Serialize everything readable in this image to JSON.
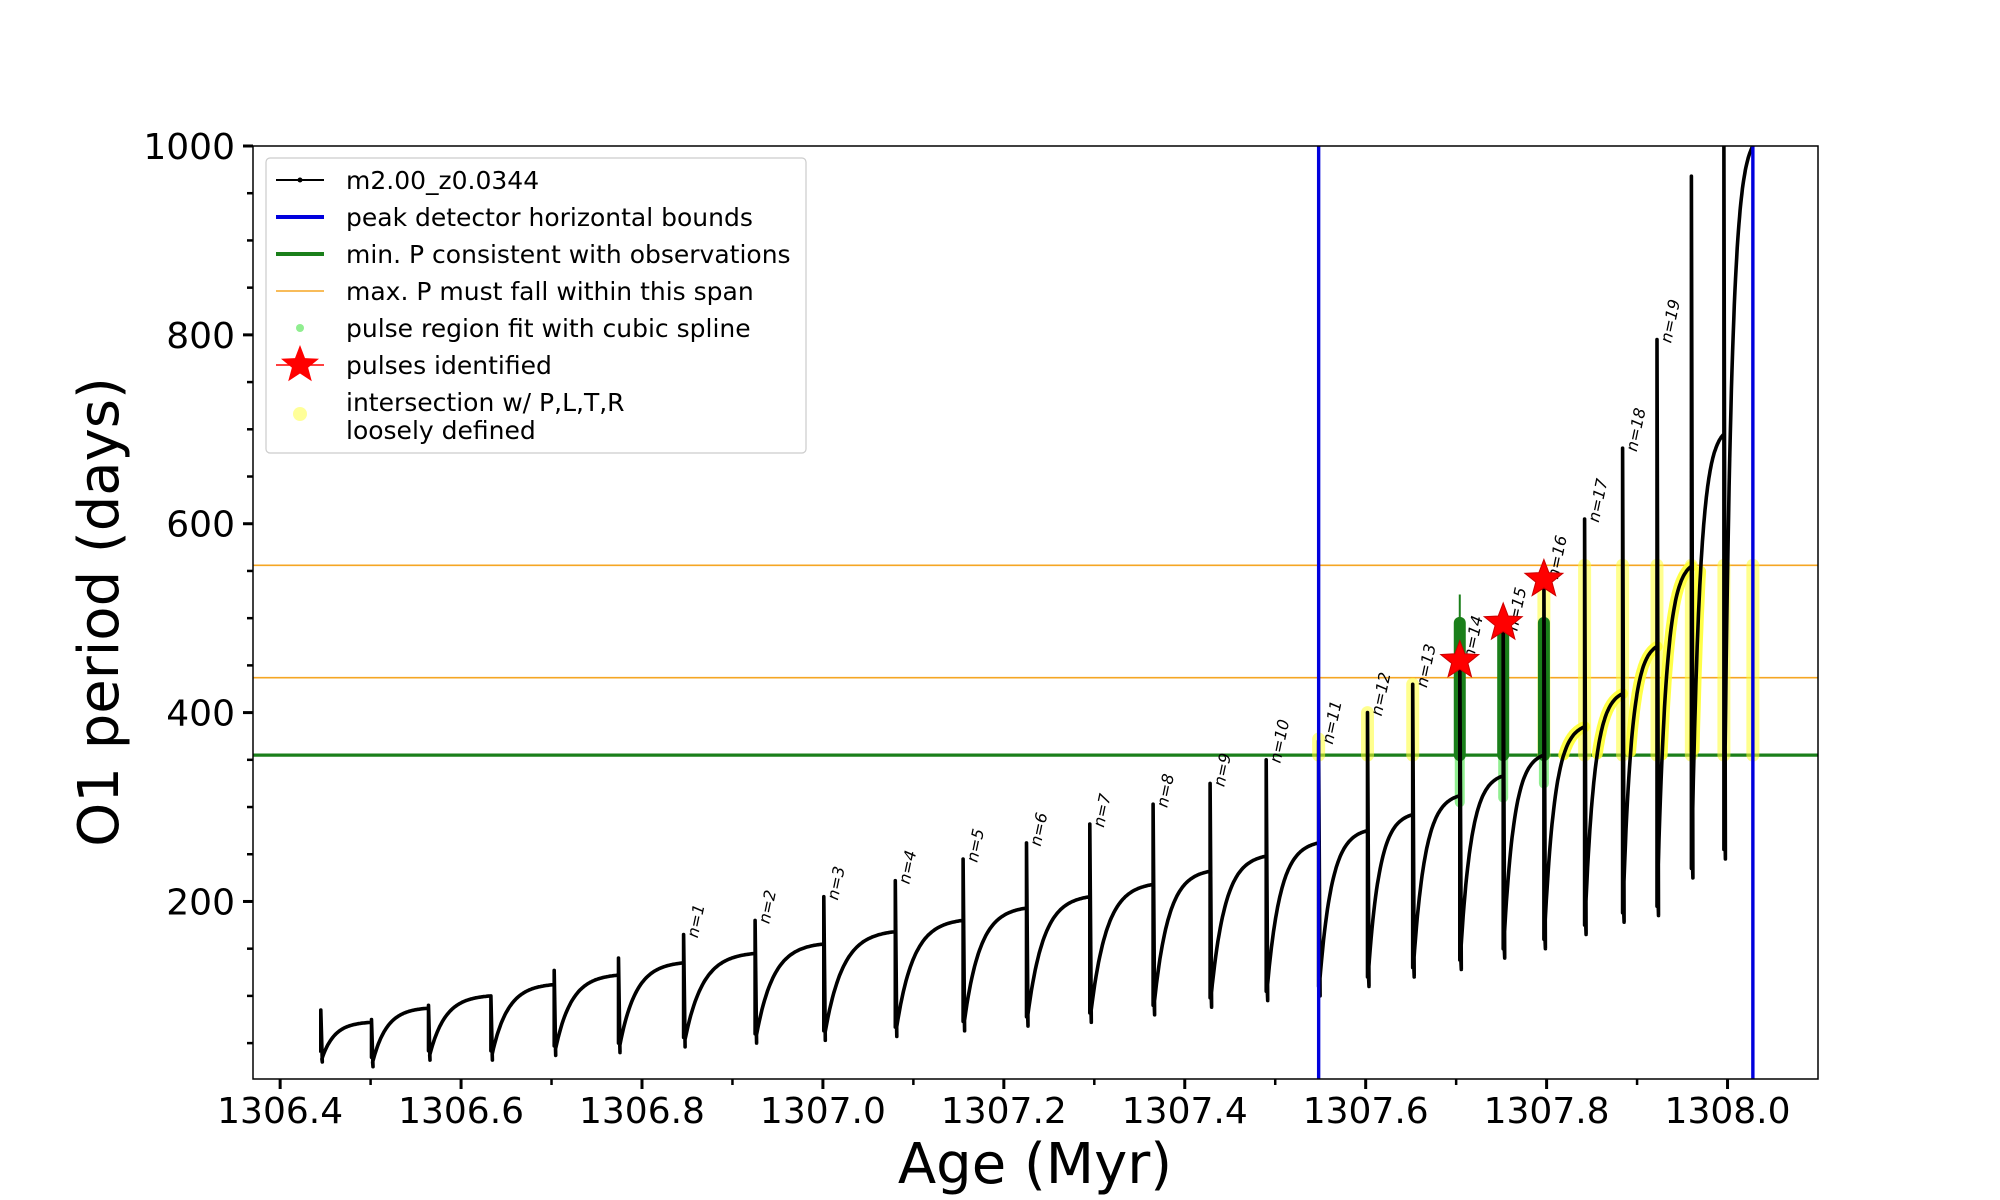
{
  "chart_data": {
    "type": "line",
    "title": "",
    "xlabel": "Age (Myr)",
    "ylabel": "O1 period (days)",
    "xlim": [
      1306.37,
      1308.1
    ],
    "ylim": [
      12,
      1000
    ],
    "xticks": [
      1306.4,
      1306.6,
      1306.8,
      1307.0,
      1307.2,
      1307.4,
      1307.6,
      1307.8,
      1308.0
    ],
    "xtick_labels": [
      "1306.4",
      "1306.6",
      "1306.8",
      "1307.0",
      "1307.2",
      "1307.4",
      "1307.6",
      "1307.8",
      "1308.0"
    ],
    "yticks": [
      200,
      400,
      600,
      800,
      1000
    ],
    "ytick_labels": [
      "200",
      "400",
      "600",
      "800",
      "1000"
    ],
    "legend_position": "upper-left",
    "legend": [
      {
        "label": "m2.00_z0.0344",
        "style": "line-dot",
        "color": "#000000"
      },
      {
        "label": "peak detector horizontal bounds",
        "style": "line",
        "color": "#0000dd"
      },
      {
        "label": "min. P consistent with observations",
        "style": "line",
        "color": "#1a7f1a"
      },
      {
        "label": "max. P must fall within this span",
        "style": "thin-line",
        "color": "#f5a623"
      },
      {
        "label": "pulse region fit with cubic spline",
        "style": "dot",
        "color": "#90ee90"
      },
      {
        "label": "pulses identified",
        "style": "star",
        "color": "#ff0000"
      },
      {
        "label": "intersection w/ P,L,T,R\nloosely defined",
        "style": "dot",
        "color": "#ffff99"
      }
    ],
    "series_main": {
      "name": "m2.00_z0.0344",
      "color": "#000000",
      "cycles": [
        {
          "t0": 1306.445,
          "t1": 1306.501,
          "spike": 85,
          "drop": 30,
          "end": 72
        },
        {
          "t0": 1306.501,
          "t1": 1306.564,
          "spike": 75,
          "drop": 25,
          "end": 87
        },
        {
          "t0": 1306.564,
          "t1": 1306.633,
          "spike": 90,
          "drop": 32,
          "end": 100
        },
        {
          "t0": 1306.633,
          "t1": 1306.703,
          "spike": 100,
          "drop": 32,
          "end": 112
        },
        {
          "t0": 1306.703,
          "t1": 1306.774,
          "spike": 127,
          "drop": 37,
          "end": 122
        },
        {
          "t0": 1306.774,
          "t1": 1306.846,
          "spike": 140,
          "drop": 40,
          "end": 135
        },
        {
          "t0": 1306.846,
          "t1": 1306.925,
          "spike": 165,
          "drop": 46,
          "end": 145
        },
        {
          "t0": 1306.925,
          "t1": 1307.001,
          "spike": 180,
          "drop": 50,
          "end": 155
        },
        {
          "t0": 1307.001,
          "t1": 1307.08,
          "spike": 205,
          "drop": 53,
          "end": 168
        },
        {
          "t0": 1307.08,
          "t1": 1307.155,
          "spike": 222,
          "drop": 57,
          "end": 180
        },
        {
          "t0": 1307.155,
          "t1": 1307.225,
          "spike": 245,
          "drop": 63,
          "end": 193
        },
        {
          "t0": 1307.225,
          "t1": 1307.295,
          "spike": 262,
          "drop": 68,
          "end": 205
        },
        {
          "t0": 1307.295,
          "t1": 1307.365,
          "spike": 282,
          "drop": 72,
          "end": 218
        },
        {
          "t0": 1307.365,
          "t1": 1307.428,
          "spike": 303,
          "drop": 80,
          "end": 232
        },
        {
          "t0": 1307.428,
          "t1": 1307.49,
          "spike": 325,
          "drop": 88,
          "end": 248
        },
        {
          "t0": 1307.49,
          "t1": 1307.548,
          "spike": 350,
          "drop": 95,
          "end": 262
        },
        {
          "t0": 1307.548,
          "t1": 1307.602,
          "spike": 370,
          "drop": 100,
          "end": 275
        },
        {
          "t0": 1307.602,
          "t1": 1307.652,
          "spike": 400,
          "drop": 110,
          "end": 292
        },
        {
          "t0": 1307.652,
          "t1": 1307.704,
          "spike": 430,
          "drop": 120,
          "end": 312
        },
        {
          "t0": 1307.704,
          "t1": 1307.752,
          "spike": 460,
          "drop": 128,
          "end": 333
        },
        {
          "t0": 1307.752,
          "t1": 1307.797,
          "spike": 490,
          "drop": 140,
          "end": 355
        },
        {
          "t0": 1307.797,
          "t1": 1307.842,
          "spike": 545,
          "drop": 150,
          "end": 385
        },
        {
          "t0": 1307.842,
          "t1": 1307.884,
          "spike": 605,
          "drop": 165,
          "end": 420
        },
        {
          "t0": 1307.884,
          "t1": 1307.922,
          "spike": 680,
          "drop": 178,
          "end": 470
        },
        {
          "t0": 1307.922,
          "t1": 1307.96,
          "spike": 795,
          "drop": 185,
          "end": 555
        },
        {
          "t0": 1307.96,
          "t1": 1307.996,
          "spike": 968,
          "drop": 225,
          "end": 695
        },
        {
          "t0": 1307.996,
          "t1": 1308.028,
          "spike": 1000,
          "drop": 245,
          "end": 1000
        }
      ]
    },
    "peak_detector_bounds": {
      "x": [
        1307.548,
        1308.028
      ],
      "color": "#0000dd"
    },
    "min_period_line": {
      "y": 355,
      "color": "#1a7f1a"
    },
    "max_period_span": {
      "y": [
        437,
        556
      ],
      "color": "#f5a623"
    },
    "pulses_identified": [
      {
        "x": 1307.704,
        "y": 455
      },
      {
        "x": 1307.752,
        "y": 495
      },
      {
        "x": 1307.797,
        "y": 541
      }
    ],
    "pulse_labels": [
      {
        "text": "n=1",
        "x": 1306.846,
        "y": 165
      },
      {
        "text": "n=2",
        "x": 1306.925,
        "y": 180
      },
      {
        "text": "n=3",
        "x": 1307.001,
        "y": 205
      },
      {
        "text": "n=4",
        "x": 1307.08,
        "y": 222
      },
      {
        "text": "n=5",
        "x": 1307.155,
        "y": 245
      },
      {
        "text": "n=6",
        "x": 1307.225,
        "y": 262
      },
      {
        "text": "n=7",
        "x": 1307.295,
        "y": 282
      },
      {
        "text": "n=8",
        "x": 1307.365,
        "y": 303
      },
      {
        "text": "n=9",
        "x": 1307.428,
        "y": 325
      },
      {
        "text": "n=10",
        "x": 1307.49,
        "y": 350
      },
      {
        "text": "n=11",
        "x": 1307.548,
        "y": 370
      },
      {
        "text": "n=12",
        "x": 1307.602,
        "y": 400
      },
      {
        "text": "n=13",
        "x": 1307.652,
        "y": 430
      },
      {
        "text": "n=14",
        "x": 1307.704,
        "y": 460
      },
      {
        "text": "n=15",
        "x": 1307.752,
        "y": 490
      },
      {
        "text": "n=16",
        "x": 1307.797,
        "y": 545
      },
      {
        "text": "n=17",
        "x": 1307.842,
        "y": 605
      },
      {
        "text": "n=18",
        "x": 1307.884,
        "y": 680
      },
      {
        "text": "n=19",
        "x": 1307.922,
        "y": 795
      }
    ],
    "spline_regions": [
      {
        "x": 1307.704,
        "ylow": 305,
        "yhigh": 495
      },
      {
        "x": 1307.752,
        "ylow": 310,
        "yhigh": 495
      },
      {
        "x": 1307.797,
        "ylow": 325,
        "yhigh": 495
      }
    ],
    "spline_vertical_line": {
      "x": 1307.704,
      "ylow": 330,
      "yhigh": 525
    },
    "intersection_spikes": [
      {
        "x": 1307.548,
        "ylow": 355,
        "yhigh": 372
      },
      {
        "x": 1307.602,
        "ylow": 355,
        "yhigh": 400
      },
      {
        "x": 1307.652,
        "ylow": 355,
        "yhigh": 430
      },
      {
        "x": 1307.797,
        "ylow": 355,
        "yhigh": 545
      },
      {
        "x": 1307.842,
        "ylow": 355,
        "yhigh": 556
      },
      {
        "x": 1307.884,
        "ylow": 355,
        "yhigh": 556
      },
      {
        "x": 1307.922,
        "ylow": 355,
        "yhigh": 556
      },
      {
        "x": 1307.96,
        "ylow": 355,
        "yhigh": 556
      },
      {
        "x": 1307.996,
        "ylow": 355,
        "yhigh": 556
      },
      {
        "x": 1308.028,
        "ylow": 355,
        "yhigh": 556
      }
    ],
    "intersection_curves": [
      {
        "t0": 1307.8,
        "t1": 1307.842
      },
      {
        "t0": 1307.842,
        "t1": 1307.884
      },
      {
        "t0": 1307.884,
        "t1": 1307.922
      },
      {
        "t0": 1307.922,
        "t1": 1307.96
      },
      {
        "t0": 1307.96,
        "t1": 1307.996
      }
    ]
  }
}
